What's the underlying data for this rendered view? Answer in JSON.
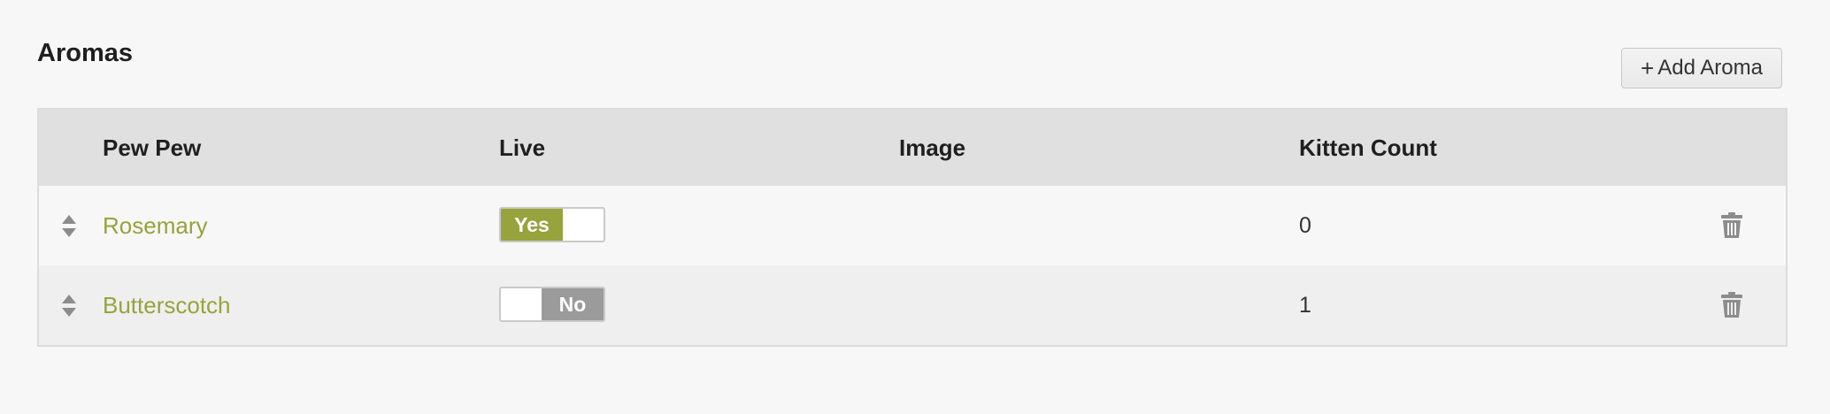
{
  "page": {
    "title": "Aromas",
    "add_button_label": "Add Aroma",
    "add_button_icon": "+"
  },
  "colors": {
    "accent": "#97a33c",
    "toggle_off": "#9b9b9b",
    "header_bg": "#e0e0e0"
  },
  "table": {
    "columns": {
      "name": "Pew Pew",
      "live": "Live",
      "image": "Image",
      "kitten_count": "Kitten Count"
    },
    "rows": [
      {
        "name": "Rosemary",
        "live": "Yes",
        "live_on": true,
        "kitten_count": "0"
      },
      {
        "name": "Butterscotch",
        "live": "No",
        "live_on": false,
        "kitten_count": "1"
      }
    ]
  },
  "icons": {
    "sort": "sort-arrows-icon",
    "delete": "trash-icon",
    "add": "plus-icon"
  }
}
